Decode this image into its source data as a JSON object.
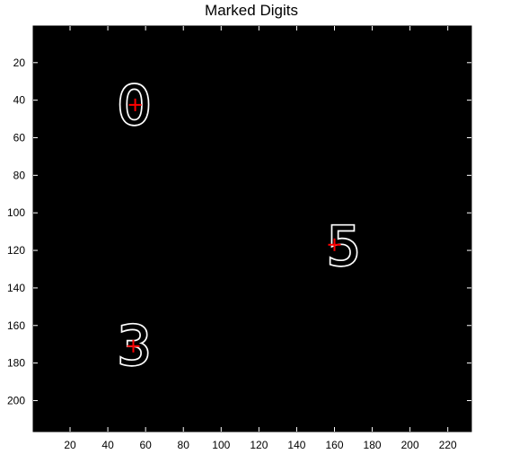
{
  "chart_data": {
    "type": "image",
    "title": "Marked Digits",
    "xlabel": "",
    "ylabel": "",
    "xlim": [
      0.5,
      232.5
    ],
    "ylim": [
      0.5,
      216.5
    ],
    "x_ticks": [
      20,
      40,
      60,
      80,
      100,
      120,
      140,
      160,
      180,
      200,
      220
    ],
    "y_ticks": [
      20,
      40,
      60,
      80,
      100,
      120,
      140,
      160,
      180,
      200
    ],
    "background_color": "#000000",
    "digit_color": "#ffffff",
    "marker_color": "#ff0000",
    "digits": [
      {
        "label": "0",
        "x": 54,
        "y": 43
      },
      {
        "label": "5",
        "x": 165,
        "y": 118
      },
      {
        "label": "3",
        "x": 54,
        "y": 171
      }
    ],
    "markers": [
      {
        "x": 54.5,
        "y": 42.5
      },
      {
        "x": 160,
        "y": 117
      },
      {
        "x": 53.5,
        "y": 171
      }
    ]
  }
}
